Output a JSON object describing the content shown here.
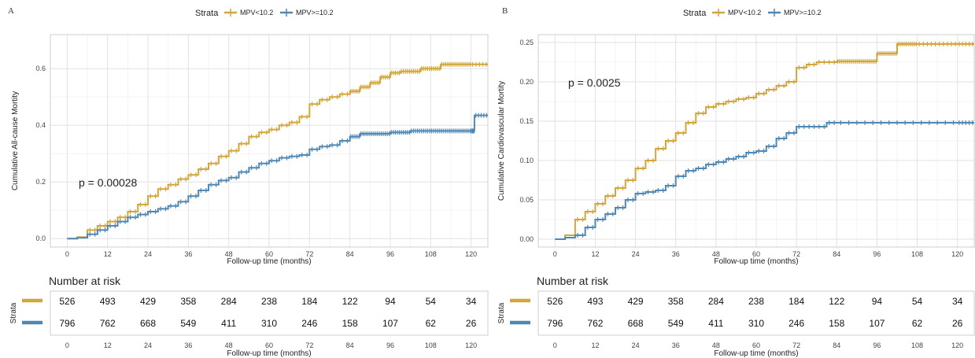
{
  "colors": {
    "low": "#D4A63A",
    "high": "#4F88B5"
  },
  "panels": [
    {
      "letter": "A",
      "legend": {
        "title": "Strata",
        "low": "MPV<10.2",
        "high": "MPV>=10.2"
      },
      "ylabel": "Cumulative All-cause Mortity",
      "xlabel": "Follow-up time (months)",
      "pvalue": "p = 0.00028",
      "risk": {
        "title": "Number at risk",
        "strata_label": "Strata",
        "xlabel": "Follow-up time (months)"
      }
    },
    {
      "letter": "B",
      "legend": {
        "title": "Strata",
        "low": "MPV<10.2",
        "high": "MPV>=10.2"
      },
      "ylabel": "Cumulative Cardiovascular Mortity",
      "xlabel": "Follow-up time (months)",
      "pvalue": "p = 0.0025",
      "risk": {
        "title": "Number at risk",
        "strata_label": "Strata",
        "xlabel": "Follow-up time (months)"
      }
    }
  ],
  "chart_data": [
    {
      "type": "line",
      "xlabel": "Follow-up time (months)",
      "ylabel": "Cumulative All-cause Mortity",
      "xlim": [
        -5,
        125
      ],
      "ylim": [
        -0.03,
        0.72
      ],
      "xticks": [
        0,
        12,
        24,
        36,
        48,
        60,
        72,
        84,
        96,
        108,
        120
      ],
      "yticks": [
        0.0,
        0.2,
        0.4,
        0.6
      ],
      "ytick_labels": [
        "0.0",
        "0.2",
        "0.4",
        "0.6"
      ],
      "series": [
        {
          "name": "MPV<10.2",
          "color_key": "low",
          "x": [
            0,
            3,
            6,
            9,
            12,
            15,
            18,
            21,
            24,
            27,
            30,
            33,
            36,
            39,
            42,
            45,
            48,
            51,
            54,
            57,
            60,
            63,
            66,
            69,
            72,
            75,
            78,
            81,
            84,
            87,
            90,
            93,
            96,
            99,
            102,
            105,
            108,
            111,
            114,
            117,
            120,
            125
          ],
          "y": [
            0,
            0.005,
            0.03,
            0.045,
            0.06,
            0.075,
            0.095,
            0.12,
            0.15,
            0.175,
            0.19,
            0.21,
            0.225,
            0.245,
            0.265,
            0.29,
            0.31,
            0.335,
            0.36,
            0.375,
            0.385,
            0.4,
            0.41,
            0.43,
            0.475,
            0.49,
            0.5,
            0.51,
            0.52,
            0.535,
            0.55,
            0.57,
            0.585,
            0.59,
            0.59,
            0.6,
            0.6,
            0.615,
            0.615,
            0.615,
            0.615,
            0.615
          ]
        },
        {
          "name": "MPV>=10.2",
          "color_key": "high",
          "x": [
            0,
            3,
            6,
            9,
            12,
            15,
            18,
            21,
            24,
            27,
            30,
            33,
            36,
            39,
            42,
            45,
            48,
            51,
            54,
            57,
            60,
            63,
            66,
            69,
            72,
            75,
            78,
            81,
            84,
            87,
            90,
            93,
            96,
            99,
            102,
            105,
            108,
            111,
            114,
            117,
            120,
            121,
            125
          ],
          "y": [
            0,
            0.003,
            0.015,
            0.03,
            0.045,
            0.06,
            0.075,
            0.085,
            0.095,
            0.105,
            0.115,
            0.13,
            0.15,
            0.17,
            0.19,
            0.205,
            0.215,
            0.235,
            0.25,
            0.265,
            0.275,
            0.285,
            0.29,
            0.295,
            0.315,
            0.325,
            0.33,
            0.345,
            0.36,
            0.37,
            0.37,
            0.37,
            0.375,
            0.375,
            0.38,
            0.38,
            0.38,
            0.38,
            0.38,
            0.38,
            0.38,
            0.435,
            0.435
          ]
        }
      ],
      "risk_table": [
        {
          "name": "MPV<10.2",
          "color_key": "low",
          "counts": [
            526,
            493,
            429,
            358,
            284,
            238,
            184,
            122,
            94,
            54,
            34
          ]
        },
        {
          "name": "MPV>=10.2",
          "color_key": "high",
          "counts": [
            796,
            762,
            668,
            549,
            411,
            310,
            246,
            158,
            107,
            62,
            26
          ]
        }
      ]
    },
    {
      "type": "line",
      "xlabel": "Follow-up time (months)",
      "ylabel": "Cumulative Cardiovascular Mortity",
      "xlim": [
        -5,
        125
      ],
      "ylim": [
        -0.01,
        0.26
      ],
      "xticks": [
        0,
        12,
        24,
        36,
        48,
        60,
        72,
        84,
        96,
        108,
        120
      ],
      "yticks": [
        0.0,
        0.05,
        0.1,
        0.15,
        0.2,
        0.25
      ],
      "ytick_labels": [
        "0.00",
        "0.05",
        "0.10",
        "0.15",
        "0.20",
        "0.25"
      ],
      "series": [
        {
          "name": "MPV<10.2",
          "color_key": "low",
          "x": [
            0,
            3,
            6,
            9,
            12,
            15,
            18,
            21,
            24,
            27,
            30,
            33,
            36,
            39,
            42,
            45,
            48,
            51,
            54,
            57,
            60,
            63,
            66,
            69,
            72,
            75,
            78,
            81,
            84,
            87,
            90,
            93,
            96,
            99,
            102,
            105,
            108,
            114,
            120,
            125
          ],
          "y": [
            0,
            0.005,
            0.025,
            0.035,
            0.045,
            0.055,
            0.065,
            0.075,
            0.09,
            0.1,
            0.115,
            0.125,
            0.135,
            0.148,
            0.16,
            0.168,
            0.172,
            0.175,
            0.178,
            0.18,
            0.185,
            0.19,
            0.195,
            0.2,
            0.218,
            0.222,
            0.225,
            0.225,
            0.226,
            0.226,
            0.226,
            0.226,
            0.236,
            0.236,
            0.248,
            0.248,
            0.248,
            0.248,
            0.248,
            0.248
          ]
        },
        {
          "name": "MPV>=10.2",
          "color_key": "high",
          "x": [
            0,
            3,
            6,
            9,
            12,
            15,
            18,
            21,
            24,
            27,
            30,
            33,
            36,
            39,
            42,
            45,
            48,
            51,
            54,
            57,
            60,
            63,
            66,
            69,
            72,
            75,
            78,
            81,
            84,
            96,
            108,
            120,
            125
          ],
          "y": [
            0,
            0.002,
            0.005,
            0.015,
            0.025,
            0.032,
            0.04,
            0.05,
            0.058,
            0.06,
            0.062,
            0.068,
            0.08,
            0.087,
            0.09,
            0.095,
            0.098,
            0.102,
            0.105,
            0.11,
            0.112,
            0.118,
            0.128,
            0.135,
            0.143,
            0.143,
            0.143,
            0.148,
            0.148,
            0.148,
            0.148,
            0.148,
            0.148
          ]
        }
      ],
      "risk_table": [
        {
          "name": "MPV<10.2",
          "color_key": "low",
          "counts": [
            526,
            493,
            429,
            358,
            284,
            238,
            184,
            122,
            94,
            54,
            34
          ]
        },
        {
          "name": "MPV>=10.2",
          "color_key": "high",
          "counts": [
            796,
            762,
            668,
            549,
            411,
            310,
            246,
            158,
            107,
            62,
            26
          ]
        }
      ]
    }
  ]
}
